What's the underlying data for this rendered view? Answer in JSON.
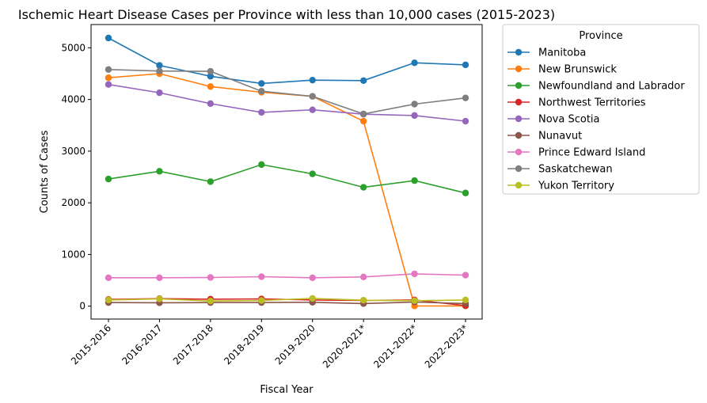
{
  "chart_data": {
    "type": "line",
    "title": "Ischemic Heart Disease Cases per Province with less than 10,000 cases (2015-2023)",
    "xlabel": "Fiscal Year",
    "ylabel": "Counts of Cases",
    "ylim": [
      -250,
      5450
    ],
    "yticks": [
      0,
      1000,
      2000,
      3000,
      4000,
      5000
    ],
    "grid": false,
    "legend_title": "Province",
    "legend_position": "outside-top-right",
    "categories": [
      "2015-2016",
      "2016-2017",
      "2017-2018",
      "2018-2019",
      "2019-2020",
      "2020-2021*",
      "2021-2022*",
      "2022-2023*"
    ],
    "series": [
      {
        "name": "Manitoba",
        "color": "#1f77b4",
        "values": [
          5190,
          4660,
          4450,
          4310,
          4375,
          4365,
          4710,
          4670
        ]
      },
      {
        "name": "New Brunswick",
        "color": "#ff7f0e",
        "values": [
          4420,
          4500,
          4250,
          4140,
          4060,
          3580,
          5,
          5
        ]
      },
      {
        "name": "Newfoundland and Labrador",
        "color": "#2ca02c",
        "values": [
          2460,
          2610,
          2410,
          2740,
          2560,
          2300,
          2430,
          2190
        ]
      },
      {
        "name": "Northwest Territories",
        "color": "#d62728",
        "values": [
          130,
          145,
          135,
          140,
          120,
          110,
          120,
          10
        ]
      },
      {
        "name": "Nova Scotia",
        "color": "#9467bd",
        "values": [
          4290,
          4130,
          3920,
          3750,
          3800,
          3715,
          3690,
          3580
        ]
      },
      {
        "name": "Nunavut",
        "color": "#8c564b",
        "values": [
          70,
          65,
          70,
          70,
          75,
          50,
          80,
          50
        ]
      },
      {
        "name": "Prince Edward Island",
        "color": "#e377c2",
        "values": [
          550,
          550,
          555,
          570,
          550,
          565,
          625,
          600
        ]
      },
      {
        "name": "Saskatchewan",
        "color": "#7f7f7f",
        "values": [
          4580,
          4550,
          4545,
          4160,
          4060,
          3720,
          3910,
          4030
        ]
      },
      {
        "name": "Yukon Territory",
        "color": "#bcbd22",
        "values": [
          120,
          140,
          100,
          110,
          150,
          115,
          105,
          120
        ]
      }
    ]
  }
}
